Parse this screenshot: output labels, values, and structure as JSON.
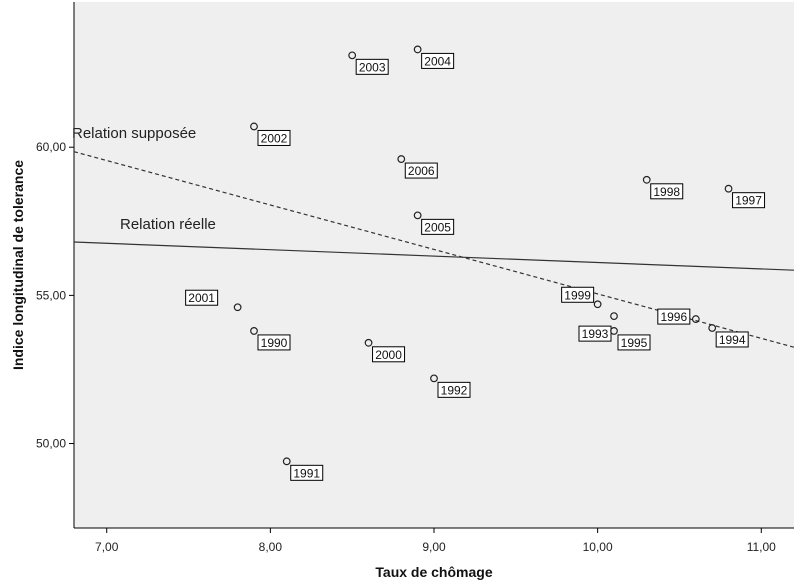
{
  "chart_data": {
    "type": "scatter",
    "xlabel": "Taux de chômage",
    "ylabel": "Indice longitudinal de tolerance",
    "xlim": [
      6.8,
      11.2
    ],
    "ylim": [
      47.15,
      64.9
    ],
    "xticks": [
      "7,00",
      "8,00",
      "9,00",
      "10,00",
      "11,00"
    ],
    "yticks": [
      "50,00",
      "55,00",
      "60,00"
    ],
    "grid": false,
    "points": [
      {
        "label": "1990",
        "x": 7.9,
        "y": 53.8
      },
      {
        "label": "1991",
        "x": 8.1,
        "y": 49.4
      },
      {
        "label": "1992",
        "x": 9.0,
        "y": 52.2
      },
      {
        "label": "1993",
        "x": 10.1,
        "y": 54.3
      },
      {
        "label": "1994",
        "x": 10.7,
        "y": 53.9
      },
      {
        "label": "1995",
        "x": 10.1,
        "y": 53.8
      },
      {
        "label": "1996",
        "x": 10.6,
        "y": 54.2
      },
      {
        "label": "1997",
        "x": 10.8,
        "y": 58.6
      },
      {
        "label": "1998",
        "x": 10.3,
        "y": 58.9
      },
      {
        "label": "1999",
        "x": 10.0,
        "y": 54.7
      },
      {
        "label": "2000",
        "x": 8.6,
        "y": 53.4
      },
      {
        "label": "2001",
        "x": 7.8,
        "y": 54.6
      },
      {
        "label": "2002",
        "x": 7.9,
        "y": 60.7
      },
      {
        "label": "2003",
        "x": 8.5,
        "y": 63.1
      },
      {
        "label": "2004",
        "x": 8.9,
        "y": 63.3
      },
      {
        "label": "2005",
        "x": 8.9,
        "y": 57.7
      },
      {
        "label": "2006",
        "x": 8.8,
        "y": 59.6
      }
    ],
    "lines": [
      {
        "name": "Relation supposée",
        "style": "dashed",
        "from": [
          6.8,
          59.85
        ],
        "to": [
          11.2,
          53.25
        ]
      },
      {
        "name": "Relation réelle",
        "style": "solid",
        "from": [
          6.8,
          56.8
        ],
        "to": [
          11.2,
          55.85
        ]
      }
    ]
  }
}
